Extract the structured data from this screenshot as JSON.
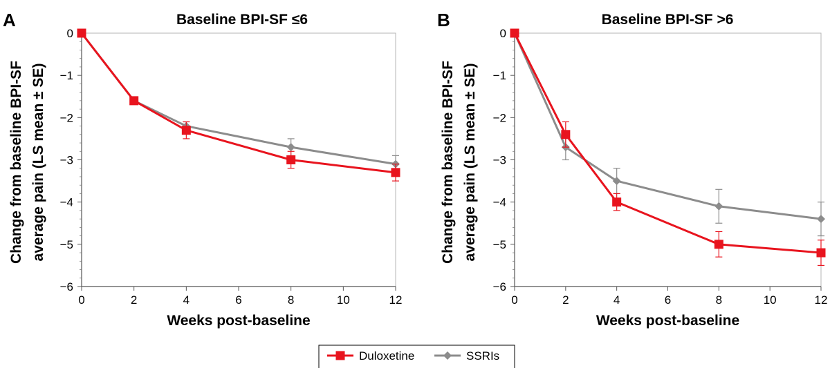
{
  "legend": {
    "items": [
      {
        "name": "Duloxetine",
        "color": "#e8141e",
        "marker": "square"
      },
      {
        "name": "SSRIs",
        "color": "#8c8c8c",
        "marker": "diamond"
      }
    ]
  },
  "chart_data": [
    {
      "panel": "A",
      "type": "line",
      "title": "Baseline BPI-SF ≤6",
      "xlabel": "Weeks post-baseline",
      "ylabel": [
        "Change from baseline BPI-SF",
        "average pain (LS mean ± SE)"
      ],
      "xlim": [
        0,
        12
      ],
      "ylim": [
        -6,
        0
      ],
      "xticks": [
        0,
        2,
        4,
        6,
        8,
        10,
        12
      ],
      "yticks": [
        0,
        -1,
        -2,
        -3,
        -4,
        -5,
        -6
      ],
      "ytick_labels": [
        "0",
        "−1",
        "−2",
        "−3",
        "−4",
        "−5",
        "−6"
      ],
      "grid": false,
      "series": [
        {
          "name": "Duloxetine",
          "color": "#e8141e",
          "marker": "square",
          "x": [
            0,
            2,
            4,
            8,
            12
          ],
          "y": [
            0,
            -1.6,
            -2.3,
            -3.0,
            -3.3
          ],
          "se": [
            0,
            0.05,
            0.2,
            0.2,
            0.2
          ]
        },
        {
          "name": "SSRIs",
          "color": "#8c8c8c",
          "marker": "diamond",
          "x": [
            0,
            2,
            4,
            8,
            12
          ],
          "y": [
            0,
            -1.6,
            -2.2,
            -2.7,
            -3.1
          ],
          "se": [
            0,
            0.05,
            0.1,
            0.2,
            0.2
          ]
        }
      ]
    },
    {
      "panel": "B",
      "type": "line",
      "title": "Baseline BPI-SF >6",
      "xlabel": "Weeks post-baseline",
      "ylabel": [
        "Change from baseline BPI-SF",
        "average pain (LS mean ± SE)"
      ],
      "xlim": [
        0,
        12
      ],
      "ylim": [
        -6,
        0
      ],
      "xticks": [
        0,
        2,
        4,
        6,
        8,
        10,
        12
      ],
      "yticks": [
        0,
        -1,
        -2,
        -3,
        -4,
        -5,
        -6
      ],
      "ytick_labels": [
        "0",
        "−1",
        "−2",
        "−3",
        "−4",
        "−5",
        "−6"
      ],
      "grid": false,
      "series": [
        {
          "name": "Duloxetine",
          "color": "#e8141e",
          "marker": "square",
          "x": [
            0,
            2,
            4,
            8,
            12
          ],
          "y": [
            0,
            -2.4,
            -4.0,
            -5.0,
            -5.2
          ],
          "se": [
            0,
            0.3,
            0.2,
            0.3,
            0.3
          ]
        },
        {
          "name": "SSRIs",
          "color": "#8c8c8c",
          "marker": "diamond",
          "x": [
            0,
            2,
            4,
            8,
            12
          ],
          "y": [
            0,
            -2.7,
            -3.5,
            -4.1,
            -4.4
          ],
          "se": [
            0,
            0.3,
            0.3,
            0.4,
            0.4
          ]
        }
      ]
    }
  ]
}
